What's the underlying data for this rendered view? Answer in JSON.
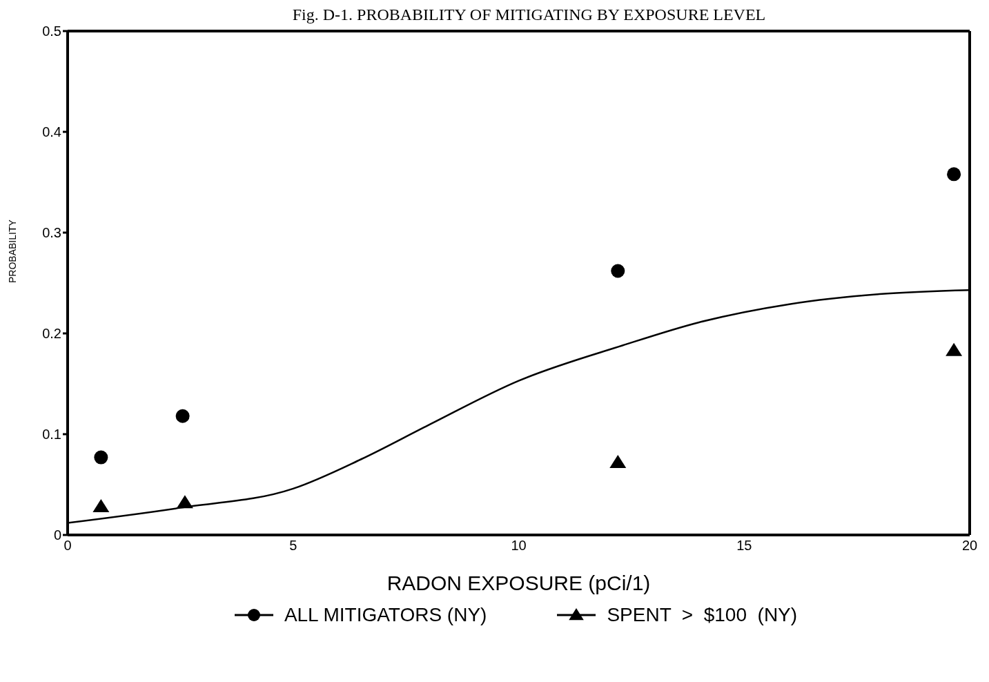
{
  "chart_data": {
    "type": "scatter",
    "title": "Fig. D-1. PROBABILITY OF MITIGATING BY EXPOSURE LEVEL",
    "xlabel": "RADON EXPOSURE   (pCi/1)",
    "ylabel": "PROBABILITY",
    "xlim": [
      0,
      20
    ],
    "xticks": [
      0,
      5,
      10,
      15,
      20
    ],
    "ylim": [
      0,
      0.5
    ],
    "yticks": [
      0,
      0.1,
      0.2,
      0.3,
      0.4,
      0.5
    ],
    "legend": "bottom",
    "series": [
      {
        "name": "ALL MITIGATORS (NY)",
        "marker": "circle",
        "color": "#000000",
        "x": [
          0.74,
          2.55,
          12.2,
          19.65
        ],
        "values": [
          0.077,
          0.118,
          0.262,
          0.358
        ]
      },
      {
        "name": "SPENT  >  $100  (NY)",
        "marker": "triangle",
        "color": "#000000",
        "x": [
          0.74,
          2.6,
          12.2,
          19.65
        ],
        "values": [
          0.028,
          0.032,
          0.072,
          0.183
        ]
      },
      {
        "type": "line",
        "marker": "none",
        "line_style": "solid",
        "color": "#000000",
        "x": [
          0,
          2.5,
          5,
          6.5,
          8,
          10,
          12.3,
          14,
          16,
          18,
          20
        ],
        "values": [
          0.012,
          0.027,
          0.046,
          0.075,
          0.109,
          0.153,
          0.188,
          0.211,
          0.229,
          0.239,
          0.243
        ]
      }
    ]
  }
}
